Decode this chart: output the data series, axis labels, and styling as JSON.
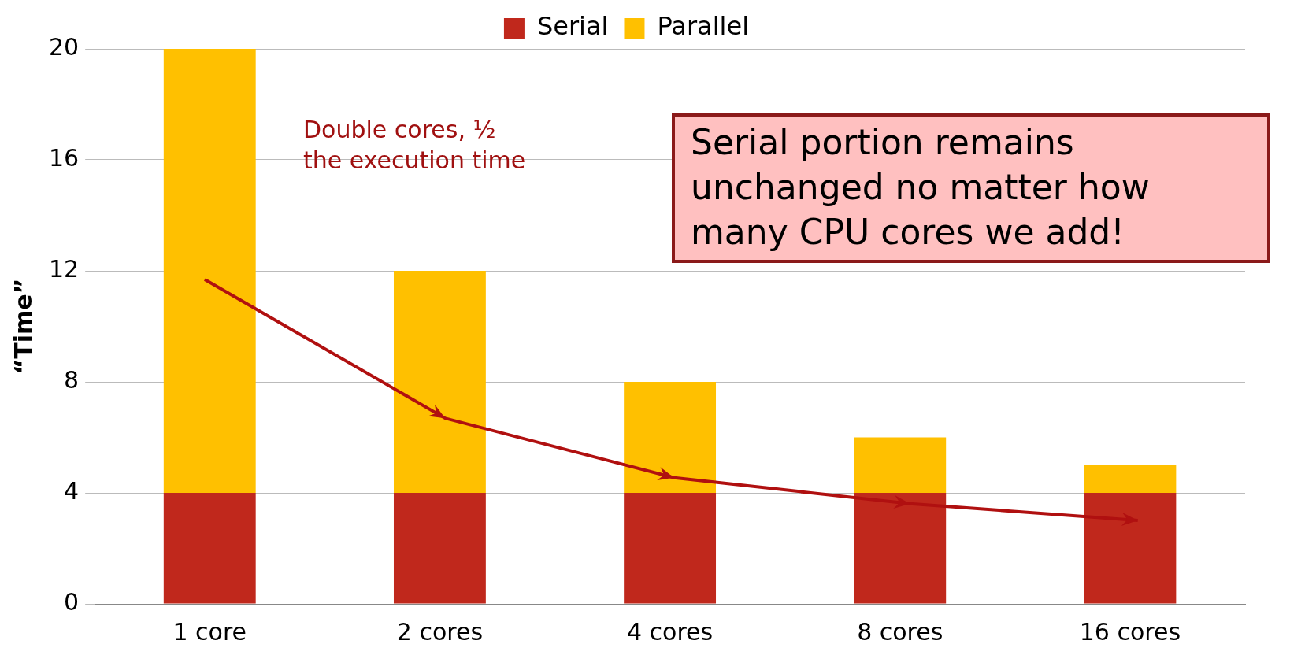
{
  "chart_data": {
    "type": "bar",
    "stacked": true,
    "ylabel": "“Time”",
    "categories": [
      "1 core",
      "2 cores",
      "4 cores",
      "8 cores",
      "16 cores"
    ],
    "series": [
      {
        "name": "Serial",
        "color": "#c0281c",
        "values": [
          4,
          4,
          4,
          4,
          4
        ]
      },
      {
        "name": "Parallel",
        "color": "#ffc000",
        "values": [
          16,
          8,
          4,
          2,
          1
        ]
      }
    ],
    "ylim": [
      0,
      20
    ],
    "yticks": [
      0,
      4,
      8,
      12,
      16,
      20
    ],
    "grid": "y",
    "legend": "top",
    "annotations": [
      "Double cores, ½ the execution time",
      "Serial portion remains unchanged  no matter how many CPU cores we add!"
    ]
  }
}
